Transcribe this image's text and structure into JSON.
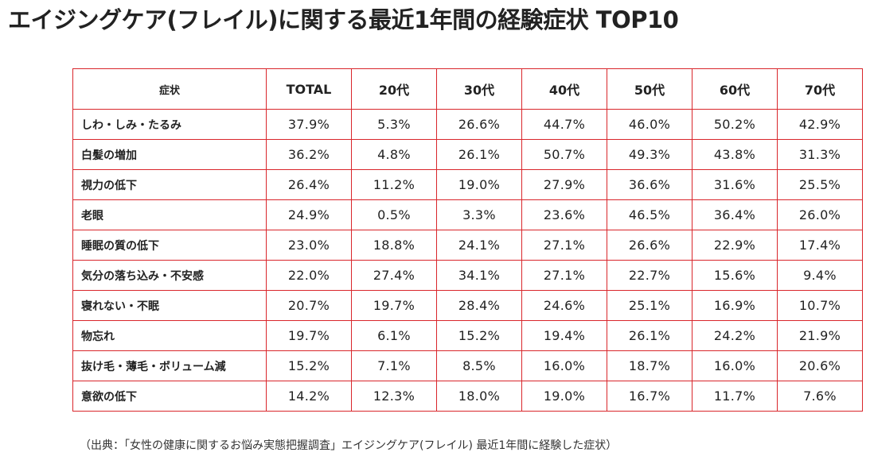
{
  "title": "エイジングケア(フレイル)に関する最近1年間の経験症状 TOP10",
  "source": "（出典：「女性の健康に関するお悩み実態把握調査」エイジングケア(フレイル) 最近1年間に経験した症状）",
  "chart_data": {
    "type": "table",
    "title": "エイジングケア(フレイル)に関する最近1年間の経験症状 TOP10",
    "columns": [
      "症状",
      "TOTAL",
      "20代",
      "30代",
      "40代",
      "50代",
      "60代",
      "70代"
    ],
    "rows": [
      {
        "label": "しわ・しみ・たるみ",
        "values": [
          "37.9%",
          "5.3%",
          "26.6%",
          "44.7%",
          "46.0%",
          "50.2%",
          "42.9%"
        ]
      },
      {
        "label": "白髪の増加",
        "values": [
          "36.2%",
          "4.8%",
          "26.1%",
          "50.7%",
          "49.3%",
          "43.8%",
          "31.3%"
        ]
      },
      {
        "label": "視力の低下",
        "values": [
          "26.4%",
          "11.2%",
          "19.0%",
          "27.9%",
          "36.6%",
          "31.6%",
          "25.5%"
        ]
      },
      {
        "label": "老眼",
        "values": [
          "24.9%",
          "0.5%",
          "3.3%",
          "23.6%",
          "46.5%",
          "36.4%",
          "26.0%"
        ]
      },
      {
        "label": "睡眠の質の低下",
        "values": [
          "23.0%",
          "18.8%",
          "24.1%",
          "27.1%",
          "26.6%",
          "22.9%",
          "17.4%"
        ]
      },
      {
        "label": "気分の落ち込み・不安感",
        "values": [
          "22.0%",
          "27.4%",
          "34.1%",
          "27.1%",
          "22.7%",
          "15.6%",
          "9.4%"
        ]
      },
      {
        "label": "寝れない・不眠",
        "values": [
          "20.7%",
          "19.7%",
          "28.4%",
          "24.6%",
          "25.1%",
          "16.9%",
          "10.7%"
        ]
      },
      {
        "label": "物忘れ",
        "values": [
          "19.7%",
          "6.1%",
          "15.2%",
          "19.4%",
          "26.1%",
          "24.2%",
          "21.9%"
        ]
      },
      {
        "label": "抜け毛・薄毛・ボリューム減",
        "values": [
          "15.2%",
          "7.1%",
          "8.5%",
          "16.0%",
          "18.7%",
          "16.0%",
          "20.6%"
        ]
      },
      {
        "label": "意欲の低下",
        "values": [
          "14.2%",
          "12.3%",
          "18.0%",
          "19.0%",
          "16.7%",
          "11.7%",
          "7.6%"
        ]
      }
    ]
  },
  "colors": {
    "border": "#d9262b",
    "text": "#222222"
  }
}
